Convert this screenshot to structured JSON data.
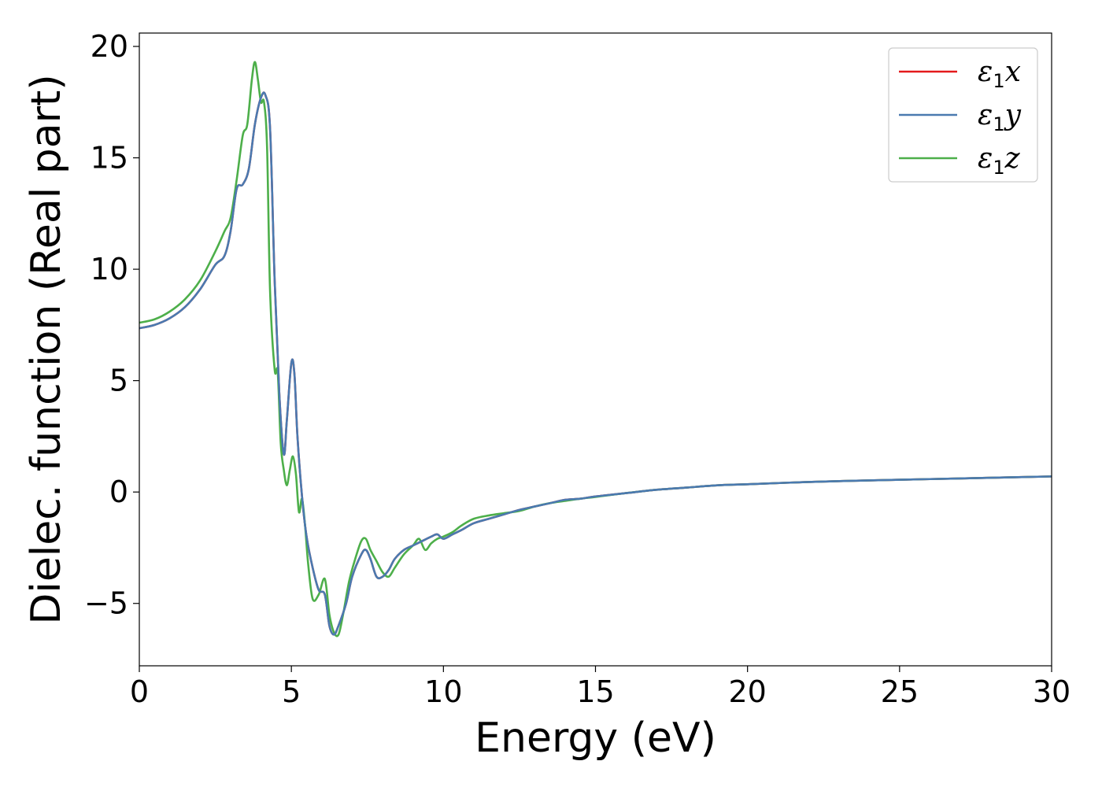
{
  "chart_data": {
    "type": "line",
    "title": "",
    "xlabel": "Energy (eV)",
    "ylabel": "Dielec. function (Real part)",
    "xlim": [
      0,
      30
    ],
    "ylim": [
      -7.8,
      20.6
    ],
    "xticks": [
      0,
      5,
      10,
      15,
      20,
      25,
      30
    ],
    "xtick_labels": [
      "0",
      "5",
      "10",
      "15",
      "20",
      "25",
      "30"
    ],
    "yticks": [
      -5,
      0,
      5,
      10,
      15,
      20
    ],
    "ytick_labels": [
      "−5",
      "0",
      "5",
      "10",
      "15",
      "20"
    ],
    "grid": false,
    "legend_position": "top-right",
    "series": [
      {
        "name": "ε₁x",
        "name_base": "ε",
        "name_sub": "1",
        "name_tail": "x",
        "color": "#e41a1c",
        "x": [
          0,
          0.5,
          1.0,
          1.5,
          2.0,
          2.5,
          2.8,
          3.0,
          3.2,
          3.4,
          3.6,
          3.8,
          4.0,
          4.15,
          4.3,
          4.45,
          4.6,
          4.75,
          4.85,
          5.0,
          5.1,
          5.2,
          5.35,
          5.5,
          5.7,
          5.9,
          6.1,
          6.25,
          6.4,
          6.55,
          6.8,
          7.0,
          7.3,
          7.45,
          7.6,
          7.8,
          8.0,
          8.2,
          8.4,
          8.7,
          9.0,
          9.3,
          9.6,
          9.8,
          10.0,
          10.3,
          10.6,
          11.0,
          11.5,
          12.0,
          12.5,
          13.0,
          13.5,
          14.0,
          14.5,
          15.0,
          16.0,
          17.0,
          18.0,
          19.0,
          20.0,
          22.0,
          24.0,
          26.0,
          28.0,
          30.0
        ],
        "y": [
          7.35,
          7.5,
          7.8,
          8.3,
          9.1,
          10.2,
          10.6,
          11.7,
          13.6,
          13.8,
          14.5,
          16.5,
          17.7,
          17.8,
          16.3,
          9.5,
          4.5,
          1.7,
          3.2,
          5.8,
          5.3,
          2.5,
          -0.2,
          -2.0,
          -3.4,
          -4.4,
          -4.6,
          -6.0,
          -6.4,
          -6.0,
          -5.0,
          -3.8,
          -2.8,
          -2.6,
          -3.0,
          -3.8,
          -3.8,
          -3.5,
          -3.0,
          -2.6,
          -2.4,
          -2.2,
          -2.0,
          -1.9,
          -2.1,
          -1.9,
          -1.7,
          -1.4,
          -1.2,
          -1.0,
          -0.8,
          -0.65,
          -0.5,
          -0.35,
          -0.3,
          -0.2,
          -0.05,
          0.1,
          0.2,
          0.3,
          0.35,
          0.45,
          0.52,
          0.58,
          0.64,
          0.7
        ]
      },
      {
        "name": "ε₁y",
        "name_base": "ε",
        "name_sub": "1",
        "name_tail": "y",
        "color": "#4a7ab0",
        "x": [
          0,
          0.5,
          1.0,
          1.5,
          2.0,
          2.5,
          2.8,
          3.0,
          3.2,
          3.4,
          3.6,
          3.8,
          4.0,
          4.15,
          4.3,
          4.45,
          4.6,
          4.75,
          4.85,
          5.0,
          5.1,
          5.2,
          5.35,
          5.5,
          5.7,
          5.9,
          6.1,
          6.25,
          6.4,
          6.55,
          6.8,
          7.0,
          7.3,
          7.45,
          7.6,
          7.8,
          8.0,
          8.2,
          8.4,
          8.7,
          9.0,
          9.3,
          9.6,
          9.8,
          10.0,
          10.3,
          10.6,
          11.0,
          11.5,
          12.0,
          12.5,
          13.0,
          13.5,
          14.0,
          14.5,
          15.0,
          16.0,
          17.0,
          18.0,
          19.0,
          20.0,
          22.0,
          24.0,
          26.0,
          28.0,
          30.0
        ],
        "y": [
          7.35,
          7.5,
          7.8,
          8.3,
          9.1,
          10.2,
          10.6,
          11.7,
          13.6,
          13.8,
          14.5,
          16.5,
          17.7,
          17.8,
          16.3,
          9.5,
          4.5,
          1.7,
          3.2,
          5.8,
          5.3,
          2.5,
          -0.2,
          -2.0,
          -3.4,
          -4.4,
          -4.6,
          -6.0,
          -6.4,
          -6.0,
          -5.0,
          -3.8,
          -2.8,
          -2.6,
          -3.0,
          -3.8,
          -3.8,
          -3.5,
          -3.0,
          -2.6,
          -2.4,
          -2.2,
          -2.0,
          -1.9,
          -2.1,
          -1.9,
          -1.7,
          -1.4,
          -1.2,
          -1.0,
          -0.8,
          -0.65,
          -0.5,
          -0.35,
          -0.3,
          -0.2,
          -0.05,
          0.1,
          0.2,
          0.3,
          0.35,
          0.45,
          0.52,
          0.58,
          0.64,
          0.7
        ]
      },
      {
        "name": "ε₁z",
        "name_base": "ε",
        "name_sub": "1",
        "name_tail": "z",
        "color": "#4daf4a",
        "x": [
          0,
          0.5,
          1.0,
          1.5,
          2.0,
          2.5,
          2.8,
          3.0,
          3.2,
          3.4,
          3.55,
          3.7,
          3.8,
          3.9,
          4.0,
          4.1,
          4.2,
          4.3,
          4.45,
          4.55,
          4.65,
          4.75,
          4.85,
          4.95,
          5.05,
          5.15,
          5.25,
          5.35,
          5.45,
          5.55,
          5.7,
          5.9,
          6.1,
          6.25,
          6.4,
          6.55,
          6.7,
          6.9,
          7.1,
          7.3,
          7.45,
          7.6,
          7.8,
          8.0,
          8.2,
          8.4,
          8.7,
          9.0,
          9.2,
          9.4,
          9.6,
          9.8,
          10.0,
          10.3,
          10.6,
          11.0,
          11.5,
          12.0,
          12.5,
          13.0,
          13.5,
          14.0,
          14.5,
          15.0,
          16.0,
          17.0,
          18.0,
          19.0,
          20.0,
          22.0,
          24.0,
          26.0,
          28.0,
          30.0
        ],
        "y": [
          7.6,
          7.75,
          8.1,
          8.65,
          9.5,
          10.8,
          11.7,
          12.3,
          14.0,
          16.0,
          16.5,
          18.5,
          19.3,
          18.5,
          17.5,
          17.5,
          15.5,
          9.0,
          5.5,
          5.4,
          2.2,
          1.0,
          0.3,
          1.0,
          1.6,
          0.8,
          -0.9,
          -0.3,
          -1.5,
          -3.2,
          -4.8,
          -4.6,
          -3.9,
          -5.5,
          -6.3,
          -6.4,
          -5.5,
          -4.0,
          -3.0,
          -2.2,
          -2.1,
          -2.6,
          -3.1,
          -3.6,
          -3.8,
          -3.4,
          -2.8,
          -2.4,
          -2.1,
          -2.6,
          -2.3,
          -2.1,
          -2.0,
          -1.8,
          -1.5,
          -1.2,
          -1.05,
          -0.95,
          -0.85,
          -0.65,
          -0.5,
          -0.4,
          -0.3,
          -0.22,
          -0.05,
          0.1,
          0.2,
          0.3,
          0.35,
          0.45,
          0.52,
          0.58,
          0.64,
          0.7
        ]
      }
    ]
  }
}
